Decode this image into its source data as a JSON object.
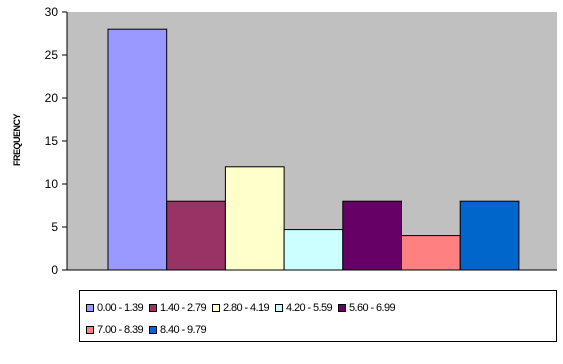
{
  "chart_data": {
    "type": "bar",
    "title": "",
    "xlabel": "",
    "ylabel": "FREQUENCY",
    "ylim": [
      0,
      30
    ],
    "yticks": [
      "0",
      "5",
      "10",
      "15",
      "20",
      "25",
      "30"
    ],
    "grid": false,
    "plot_background": "#c0c0c0",
    "legend_position": "bottom",
    "categories": [
      "0.00 - 1.39",
      "1.40 - 2.79",
      "2.80 - 4.19",
      "4.20 - 5.59",
      "5.60 - 6.99",
      "7.00 - 8.39",
      "8.40 - 9.79"
    ],
    "values": [
      28,
      8,
      12,
      4.7,
      8,
      4,
      8
    ],
    "colors": [
      "#9999ff",
      "#993366",
      "#ffffcc",
      "#ccffff",
      "#660066",
      "#ff8080",
      "#0066cc"
    ]
  }
}
